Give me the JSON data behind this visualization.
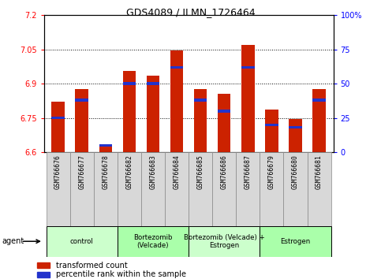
{
  "title": "GDS4089 / ILMN_1726464",
  "samples": [
    "GSM766676",
    "GSM766677",
    "GSM766678",
    "GSM766682",
    "GSM766683",
    "GSM766684",
    "GSM766685",
    "GSM766686",
    "GSM766687",
    "GSM766679",
    "GSM766680",
    "GSM766681"
  ],
  "transformed_counts": [
    6.82,
    6.875,
    6.625,
    6.955,
    6.935,
    7.045,
    6.875,
    6.855,
    7.07,
    6.785,
    6.745,
    6.875
  ],
  "percentile_ranks": [
    25,
    38,
    5,
    50,
    50,
    62,
    38,
    30,
    62,
    20,
    18,
    38
  ],
  "ymin": 6.6,
  "ymax": 7.2,
  "yticks_left": [
    6.6,
    6.75,
    6.9,
    7.05,
    7.2
  ],
  "ytick_labels_left": [
    "6.6",
    "6.75",
    "6.9",
    "7.05",
    "7.2"
  ],
  "yticks_right": [
    0,
    25,
    50,
    75,
    100
  ],
  "ytick_labels_right": [
    "0",
    "25",
    "50",
    "75",
    "100%"
  ],
  "bar_color": "#CC2200",
  "blue_color": "#2233CC",
  "bar_width": 0.55,
  "groups": [
    {
      "label": "control",
      "start": 0,
      "end": 3,
      "color": "#CCFFCC"
    },
    {
      "label": "Bortezomib\n(Velcade)",
      "start": 3,
      "end": 6,
      "color": "#AAFFAA"
    },
    {
      "label": "Bortezomib (Velcade) +\nEstrogen",
      "start": 6,
      "end": 9,
      "color": "#CCFFCC"
    },
    {
      "label": "Estrogen",
      "start": 9,
      "end": 12,
      "color": "#AAFFAA"
    }
  ],
  "legend_label_red": "transformed count",
  "legend_label_blue": "percentile rank within the sample",
  "agent_label": "agent",
  "figsize": [
    4.83,
    3.54
  ],
  "dpi": 100
}
